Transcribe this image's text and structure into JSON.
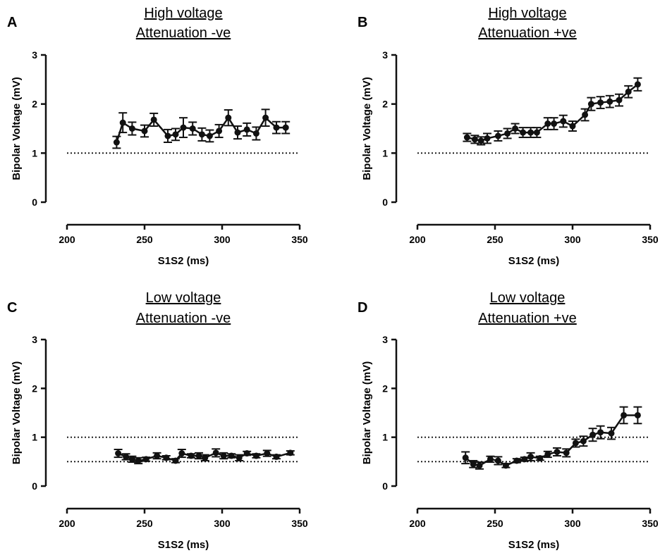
{
  "figure": {
    "panels": [
      {
        "letter": "A",
        "title": [
          "High voltage",
          "Attenuation -ve"
        ]
      },
      {
        "letter": "B",
        "title": [
          "High voltage",
          "Attenuation +ve"
        ]
      },
      {
        "letter": "C",
        "title": [
          "Low voltage",
          "Attenuation -ve"
        ]
      },
      {
        "letter": "D",
        "title": [
          "Low voltage",
          "Attenuation +ve"
        ]
      }
    ]
  },
  "chart_data": [
    {
      "type": "line",
      "panel": "A",
      "title": "High voltage Attenuation -ve",
      "xlabel": "S1S2 (ms)",
      "ylabel": "Bipolar Voltage (mV)",
      "xlim": [
        200,
        350
      ],
      "ylim": [
        0,
        3
      ],
      "xticks": [
        200,
        250,
        300,
        350
      ],
      "yticks": [
        0,
        1,
        2,
        3
      ],
      "reference_lines": [
        1
      ],
      "grid": false,
      "series": [
        {
          "x": [
            232,
            236,
            242,
            250,
            256,
            265,
            270,
            275,
            281,
            287,
            292,
            298,
            304,
            310,
            316,
            322,
            328,
            335,
            341
          ],
          "y": [
            1.22,
            1.62,
            1.5,
            1.45,
            1.68,
            1.35,
            1.38,
            1.52,
            1.5,
            1.38,
            1.35,
            1.45,
            1.72,
            1.42,
            1.48,
            1.4,
            1.72,
            1.52,
            1.52
          ],
          "err": [
            0.12,
            0.2,
            0.13,
            0.12,
            0.13,
            0.13,
            0.12,
            0.2,
            0.13,
            0.13,
            0.12,
            0.13,
            0.16,
            0.13,
            0.13,
            0.13,
            0.17,
            0.12,
            0.12
          ]
        }
      ]
    },
    {
      "type": "line",
      "panel": "B",
      "title": "High voltage Attenuation +ve",
      "xlabel": "S1S2 (ms)",
      "ylabel": "Bipolar Voltage (mV)",
      "xlim": [
        200,
        350
      ],
      "ylim": [
        0,
        3
      ],
      "xticks": [
        200,
        250,
        300,
        350
      ],
      "yticks": [
        0,
        1,
        2,
        3
      ],
      "reference_lines": [
        1
      ],
      "grid": false,
      "series": [
        {
          "x": [
            232,
            237,
            241,
            245,
            252,
            258,
            263,
            268,
            273,
            277,
            284,
            288,
            294,
            300,
            308,
            312,
            318,
            324,
            330,
            336,
            342
          ],
          "y": [
            1.32,
            1.28,
            1.25,
            1.3,
            1.35,
            1.4,
            1.5,
            1.42,
            1.42,
            1.42,
            1.6,
            1.6,
            1.65,
            1.55,
            1.78,
            2.0,
            2.03,
            2.05,
            2.08,
            2.25,
            2.4
          ],
          "err": [
            0.08,
            0.08,
            0.08,
            0.1,
            0.1,
            0.1,
            0.1,
            0.1,
            0.1,
            0.1,
            0.12,
            0.12,
            0.12,
            0.1,
            0.12,
            0.13,
            0.12,
            0.12,
            0.12,
            0.12,
            0.13
          ]
        }
      ]
    },
    {
      "type": "line",
      "panel": "C",
      "title": "Low voltage Attenuation -ve",
      "xlabel": "S1S2 (ms)",
      "ylabel": "Bipolar Voltage (mV)",
      "xlim": [
        200,
        350
      ],
      "ylim": [
        0,
        3
      ],
      "xticks": [
        200,
        250,
        300,
        350
      ],
      "yticks": [
        0,
        1,
        2,
        3
      ],
      "reference_lines": [
        1,
        0.5
      ],
      "grid": false,
      "series": [
        {
          "x": [
            233,
            238,
            242,
            246,
            251,
            258,
            264,
            270,
            274,
            280,
            285,
            289,
            296,
            301,
            306,
            311,
            316,
            322,
            329,
            335,
            344
          ],
          "y": [
            0.67,
            0.6,
            0.55,
            0.52,
            0.55,
            0.62,
            0.58,
            0.52,
            0.67,
            0.62,
            0.62,
            0.58,
            0.68,
            0.62,
            0.62,
            0.58,
            0.67,
            0.62,
            0.67,
            0.6,
            0.68
          ],
          "err": [
            0.08,
            0.06,
            0.06,
            0.06,
            0.04,
            0.06,
            0.04,
            0.04,
            0.08,
            0.04,
            0.06,
            0.06,
            0.08,
            0.06,
            0.04,
            0.06,
            0.04,
            0.04,
            0.06,
            0.04,
            0.04
          ]
        }
      ]
    },
    {
      "type": "line",
      "panel": "D",
      "title": "Low voltage Attenuation +ve",
      "xlabel": "S1S2 (ms)",
      "ylabel": "Bipolar Voltage (mV)",
      "xlim": [
        200,
        350
      ],
      "ylim": [
        0,
        3
      ],
      "xticks": [
        200,
        250,
        300,
        350
      ],
      "yticks": [
        0,
        1,
        2,
        3
      ],
      "reference_lines": [
        1,
        0.5
      ],
      "grid": false,
      "series": [
        {
          "x": [
            231,
            236,
            240,
            247,
            252,
            257,
            264,
            269,
            273,
            279,
            284,
            290,
            296,
            302,
            307,
            313,
            318,
            325,
            333,
            342
          ],
          "y": [
            0.58,
            0.45,
            0.42,
            0.55,
            0.52,
            0.42,
            0.52,
            0.55,
            0.6,
            0.57,
            0.65,
            0.7,
            0.68,
            0.88,
            0.92,
            1.05,
            1.1,
            1.08,
            1.45,
            1.45
          ],
          "err": [
            0.12,
            0.07,
            0.07,
            0.06,
            0.08,
            0.04,
            0.04,
            0.04,
            0.08,
            0.04,
            0.06,
            0.08,
            0.08,
            0.08,
            0.1,
            0.13,
            0.13,
            0.12,
            0.17,
            0.17
          ]
        }
      ]
    }
  ]
}
